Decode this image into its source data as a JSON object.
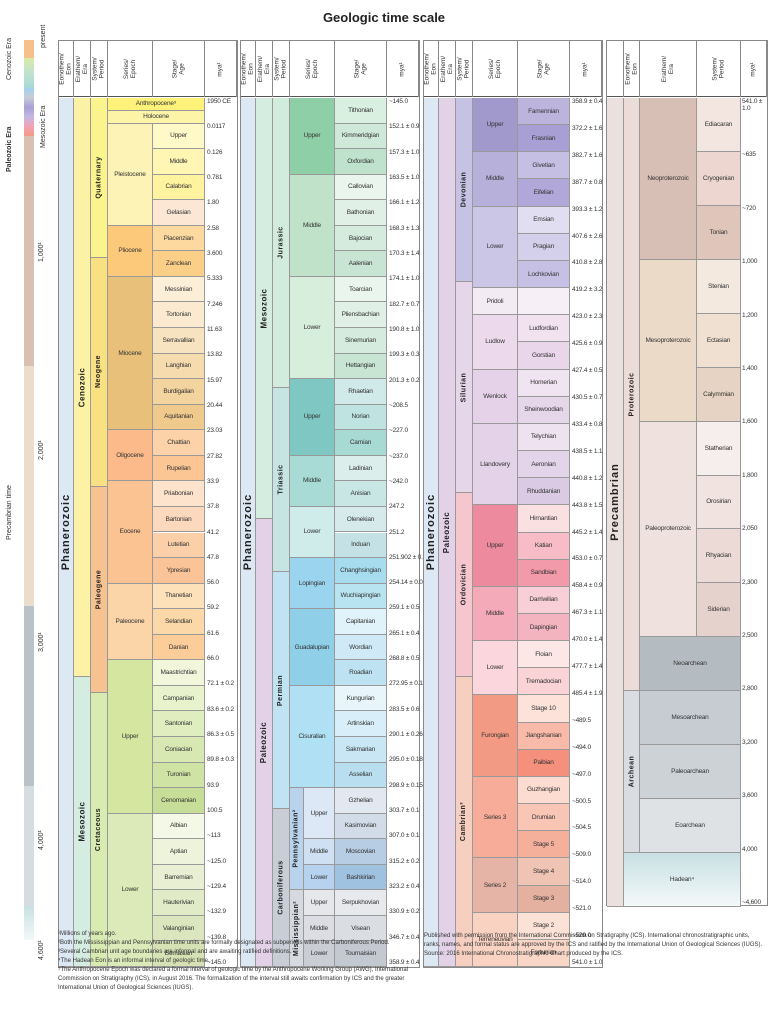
{
  "title": "Geologic time scale",
  "headers": {
    "phanerozoic": [
      "Eonothem/\nEon",
      "Erathem/\nEra",
      "System/\nPeriod",
      "Series/\nEpoch",
      "Stage/\nAge",
      "mya¹"
    ],
    "precambrian": [
      "Eonothem/\nEon",
      "Erathem/\nEra",
      "System/\nPeriod",
      "mya¹"
    ]
  },
  "timeline": {
    "labels": [
      "present",
      "Cenozoic Era",
      "Mesozoic Era",
      "Paleozoic Era",
      "Precambrian time"
    ],
    "ticks": [
      "1,000¹",
      "2,000¹",
      "3,000¹",
      "4,000¹",
      "4,600¹"
    ]
  },
  "colors": {
    "phanerozoic": "#dde8f5",
    "cenozoic": "#fbf2a6",
    "mesozoic": "#d5ece0",
    "paleozoic": "#e3d1e8",
    "quaternary": "#fbf48d",
    "neogene": "#f9e080",
    "paleogene": "#f6c28f",
    "cretaceous": "#d8ebb0",
    "jurassic": "#d2ecdc",
    "triassic": "#c6e5e2",
    "permian": "#bfe3f3",
    "carboniferous": "#c8cdd6",
    "devonian": "#c6c2e4",
    "silurian": "#e6d6ea",
    "ordovician": "#f6c6ce",
    "cambrian": "#f7cfc0",
    "precambrian": "#ece0df",
    "proterozoic": "#ecdcd8",
    "archean": "#d9dde2"
  },
  "panels": [
    {
      "eon": "Phanerozoic",
      "eras": [
        {
          "name": "Cenozoic",
          "rows": [
            0,
            24
          ]
        },
        {
          "name": "Mesozoic",
          "rows": [
            24,
            36
          ]
        }
      ],
      "periods": [
        {
          "name": "Quaternary",
          "rows": [
            0,
            7
          ]
        },
        {
          "name": "Neogene",
          "rows": [
            7,
            17
          ]
        },
        {
          "name": "Paleogene",
          "rows": [
            17,
            26
          ]
        },
        {
          "name": "Cretaceous",
          "rows": [
            26,
            38
          ]
        }
      ],
      "epochs": [
        {
          "name": "Anthropocene⁵",
          "rows": [
            0,
            0.5
          ]
        },
        {
          "name": "Holocene",
          "rows": [
            0.5,
            1
          ]
        },
        {
          "name": "Pleistocene",
          "rows": [
            1,
            5
          ]
        },
        {
          "name": "Pliocene",
          "rows": [
            5,
            7
          ]
        },
        {
          "name": "Miocene",
          "rows": [
            7,
            13
          ]
        },
        {
          "name": "Oligocene",
          "rows": [
            13,
            15
          ]
        },
        {
          "name": "Eocene",
          "rows": [
            15,
            19
          ]
        },
        {
          "name": "Paleocene",
          "rows": [
            19,
            22
          ]
        },
        {
          "name": "Upper",
          "rows": [
            22,
            28
          ]
        },
        {
          "name": "Lower",
          "rows": [
            28,
            34
          ]
        }
      ],
      "stages": [
        "Upper",
        "Middle",
        "Calabrian",
        "Gelasian",
        "Piacenzian",
        "Zanclean",
        "Messinian",
        "Tortonian",
        "Serravallian",
        "Langhian",
        "Burdigalian",
        "Aquitanian",
        "Chattian",
        "Rupelian",
        "Priabonian",
        "Bartonian",
        "Lutetian",
        "Ypresian",
        "Thanetian",
        "Selandian",
        "Danian",
        "Maastrichtian",
        "Campanian",
        "Santonian",
        "Coniacian",
        "Turonian",
        "Cenomanian",
        "Albian",
        "Aptian",
        "Barremian",
        "Hauterivian",
        "Valanginian",
        "Berriasian"
      ],
      "mya": [
        "1950 CE",
        "0.0117",
        "0.126",
        "0.781",
        "1.80",
        "2.58",
        "3.600",
        "5.333",
        "7.246",
        "11.63",
        "13.82",
        "15.97",
        "20.44",
        "23.03",
        "27.82",
        "33.9",
        "37.8",
        "41.2",
        "47.8",
        "56.0",
        "59.2",
        "61.6",
        "66.0",
        "72.1 ± 0.2",
        "83.6 ± 0.2",
        "86.3 ± 0.5",
        "89.8 ± 0.3",
        "93.9",
        "100.5",
        "~113",
        "~125.0",
        "~129.4",
        "~132.9",
        "~139.8",
        "~145.0"
      ]
    },
    {
      "eon": "Phanerozoic",
      "eras": [
        {
          "name": "Mesozoic",
          "rows": [
            0,
            16
          ]
        },
        {
          "name": "Paleozoic",
          "rows": [
            16,
            33
          ]
        }
      ],
      "periods": [
        {
          "name": "Jurassic",
          "rows": [
            0,
            11
          ]
        },
        {
          "name": "Triassic",
          "rows": [
            11,
            18
          ]
        },
        {
          "name": "Permian",
          "rows": [
            18,
            27
          ]
        },
        {
          "name": "Carboniferous",
          "rows": [
            27,
            33
          ]
        }
      ],
      "epochs": [
        {
          "name": "Upper",
          "rows": [
            0,
            3
          ]
        },
        {
          "name": "Middle",
          "rows": [
            3,
            7
          ]
        },
        {
          "name": "Lower",
          "rows": [
            7,
            11
          ]
        },
        {
          "name": "Upper",
          "rows": [
            11,
            14
          ]
        },
        {
          "name": "Middle",
          "rows": [
            14,
            16
          ]
        },
        {
          "name": "Lower",
          "rows": [
            16,
            18
          ]
        },
        {
          "name": "Lopingian",
          "rows": [
            18,
            20
          ]
        },
        {
          "name": "Guadalupian",
          "rows": [
            20,
            23
          ]
        },
        {
          "name": "Cisuralian",
          "rows": [
            23,
            27
          ]
        }
      ],
      "subperiods": [
        {
          "name": "Pennsylvanian²",
          "rows": [
            27,
            31
          ]
        },
        {
          "name": "Mississippian²",
          "rows": [
            31,
            34
          ]
        }
      ],
      "subepochs": [
        {
          "name": "Upper",
          "rows": [
            27,
            29
          ]
        },
        {
          "name": "Middle",
          "rows": [
            29,
            30
          ]
        },
        {
          "name": "Lower",
          "rows": [
            30,
            31
          ]
        },
        {
          "name": "Upper",
          "rows": [
            31,
            32
          ]
        },
        {
          "name": "Middle",
          "rows": [
            32,
            33
          ]
        },
        {
          "name": "Lower",
          "rows": [
            33,
            34
          ]
        }
      ],
      "stages": [
        "Tithonian",
        "Kimmeridgian",
        "Oxfordian",
        "Callovian",
        "Bathonian",
        "Bajocian",
        "Aalenian",
        "Toarcian",
        "Pliensbachian",
        "Sinemurian",
        "Hettangian",
        "Rhaetian",
        "Norian",
        "Carnian",
        "Ladinian",
        "Anisian",
        "Olenekian",
        "Induan",
        "Changhsingian",
        "Wuchiapingian",
        "Capitanian",
        "Wordian",
        "Roadian",
        "Kungurian",
        "Artinskian",
        "Sakmarian",
        "Asselian",
        "Gzhelian",
        "Kasimovian",
        "Moscovian",
        "Bashkirian",
        "Serpukhovian",
        "Visean",
        "Tournaisian"
      ],
      "mya": [
        "~145.0",
        "152.1 ± 0.9",
        "157.3 ± 1.0",
        "163.5 ± 1.0",
        "166.1 ± 1.2",
        "168.3 ± 1.3",
        "170.3 ± 1.4",
        "174.1 ± 1.0",
        "182.7 ± 0.7",
        "190.8 ± 1.0",
        "199.3 ± 0.3",
        "201.3 ± 0.2",
        "~208.5",
        "~227.0",
        "~237.0",
        "~242.0",
        "247.2",
        "251.2",
        "251.902 ± 0.024",
        "254.14 ± 0.07",
        "259.1 ± 0.5",
        "265.1 ± 0.4",
        "268.8 ± 0.5",
        "272.95 ± 0.11",
        "283.5 ± 0.6",
        "290.1 ± 0.26",
        "295.0 ± 0.18",
        "298.9 ± 0.15",
        "303.7 ± 0.1",
        "307.0 ± 0.1",
        "315.2 ± 0.2",
        "323.2 ± 0.4",
        "330.9 ± 0.2",
        "346.7 ± 0.4",
        "358.9 ± 0.4"
      ]
    },
    {
      "eon": "Phanerozoic",
      "eras": [
        {
          "name": "Paleozoic",
          "rows": [
            0,
            34
          ]
        }
      ],
      "periods": [
        {
          "name": "Devonian",
          "rows": [
            0,
            7
          ]
        },
        {
          "name": "Silurian",
          "rows": [
            7,
            15
          ]
        },
        {
          "name": "Ordovician",
          "rows": [
            15,
            22
          ]
        },
        {
          "name": "Cambrian³",
          "rows": [
            22,
            33
          ]
        }
      ],
      "epochs": [
        {
          "name": "Upper",
          "rows": [
            0,
            2
          ]
        },
        {
          "name": "Middle",
          "rows": [
            2,
            4
          ]
        },
        {
          "name": "Lower",
          "rows": [
            4,
            7
          ]
        },
        {
          "name": "Pridoli",
          "rows": [
            7,
            8
          ]
        },
        {
          "name": "Ludlow",
          "rows": [
            8,
            10
          ]
        },
        {
          "name": "Wenlock",
          "rows": [
            10,
            12
          ]
        },
        {
          "name": "Llandovery",
          "rows": [
            12,
            15
          ]
        },
        {
          "name": "Upper",
          "rows": [
            15,
            18
          ]
        },
        {
          "name": "Middle",
          "rows": [
            18,
            20
          ]
        },
        {
          "name": "Lower",
          "rows": [
            20,
            22
          ]
        },
        {
          "name": "Furongian",
          "rows": [
            22,
            25
          ]
        },
        {
          "name": "Series 3",
          "rows": [
            25,
            28
          ]
        },
        {
          "name": "Series 2",
          "rows": [
            28,
            30
          ]
        },
        {
          "name": "Terreneuvian",
          "rows": [
            30,
            32
          ]
        }
      ],
      "stages": [
        "Famennian",
        "Frasnian",
        "Givetian",
        "Eifelian",
        "Emsian",
        "Pragian",
        "Lochkovian",
        "",
        "Ludfordian",
        "Gorstian",
        "Homerian",
        "Sheinwoodian",
        "Telychian",
        "Aeronian",
        "Rhuddanian",
        "Hirnantian",
        "Katian",
        "Sandbian",
        "Darriwilian",
        "Dapingian",
        "Floian",
        "Tremadocian",
        "Stage 10",
        "Jiangshanian",
        "Paibian",
        "Guzhangian",
        "Drumian",
        "Stage 5",
        "Stage 4",
        "Stage 3",
        "Stage 2",
        "Fortunian"
      ],
      "mya": [
        "358.9 ± 0.4",
        "372.2 ± 1.6",
        "382.7 ± 1.6",
        "387.7 ± 0.8",
        "393.3 ± 1.2",
        "407.6 ± 2.6",
        "410.8 ± 2.8",
        "419.2 ± 3.2",
        "423.0 ± 2.3",
        "425.6 ± 0.9",
        "427.4 ± 0.5",
        "430.5 ± 0.7",
        "433.4 ± 0.8",
        "438.5 ± 1.1",
        "440.8 ± 1.2",
        "443.8 ± 1.5",
        "445.2 ± 1.4",
        "453.0 ± 0.7",
        "458.4 ± 0.9",
        "467.3 ± 1.1",
        "470.0 ± 1.4",
        "477.7 ± 1.4",
        "485.4 ± 1.9",
        "~489.5",
        "~494.0",
        "~497.0",
        "~500.5",
        "~504.5",
        "~509.0",
        "~514.0",
        "~521.0",
        "~529.0",
        "541.0 ± 1.0"
      ]
    }
  ],
  "precambrian": {
    "eon": "Precambrian",
    "superEons": [
      {
        "name": "Proterozoic",
        "rows": [
          0,
          11
        ]
      },
      {
        "name": "Archean",
        "rows": [
          11,
          15
        ]
      }
    ],
    "eras": [
      {
        "name": "Neoproterozoic",
        "rows": [
          0,
          3
        ]
      },
      {
        "name": "Mesoproterozoic",
        "rows": [
          3,
          6
        ]
      },
      {
        "name": "Paleoproterozoic",
        "rows": [
          6,
          10
        ]
      },
      {
        "name": "Neoarchean",
        "rows": [
          10,
          11
        ]
      },
      {
        "name": "Mesoarchean",
        "rows": [
          11,
          12
        ]
      },
      {
        "name": "Paleoarchean",
        "rows": [
          12,
          13
        ]
      },
      {
        "name": "Eoarchean",
        "rows": [
          13,
          14
        ]
      },
      {
        "name": "Hadean⁴",
        "rows": [
          14,
          15
        ]
      }
    ],
    "periods": [
      "Ediacaran",
      "Cryogenian",
      "Tonian",
      "Stenian",
      "Ectasian",
      "Calymmian",
      "Statherian",
      "Orosirian",
      "Rhyacian",
      "Siderian"
    ],
    "mya": [
      "541.0 ± 1.0",
      "~635",
      "~720",
      "1,000",
      "1,200",
      "1,400",
      "1,600",
      "1,800",
      "2,050",
      "2,300",
      "2,500",
      "2,800",
      "3,200",
      "3,600",
      "4,000",
      "~4,600"
    ]
  },
  "footnotes": [
    "¹Millions of years ago.",
    "²Both the Mississippian and Pennsylvanian time units are formally designated as subperiods within the Carboniferous Period.",
    "³Several Cambrian unit age boundaries are informal and are awaiting ratified definitions.",
    "⁴The Hadean Eon is an informal interval of geologic time.",
    "⁵The Anthropocene Epoch was declared a formal interval of geologic time by the Anthropocene Working Group (AWG), International Commission on Stratigraphy (ICS), in August 2016. The formalization of the interval still awaits confirmation by ICS and the greater International Union of Geological Sciences (IUGS)."
  ],
  "credit": [
    "Published with permission from the International Commission on Stratigraphy (ICS). International chronostratigraphic units, ranks, names, and formal status are approved by the ICS and ratified by the International Union of Geological Sciences (IUGS).",
    "Source: 2016 International Chronostratigraphic Chart produced by the ICS."
  ]
}
